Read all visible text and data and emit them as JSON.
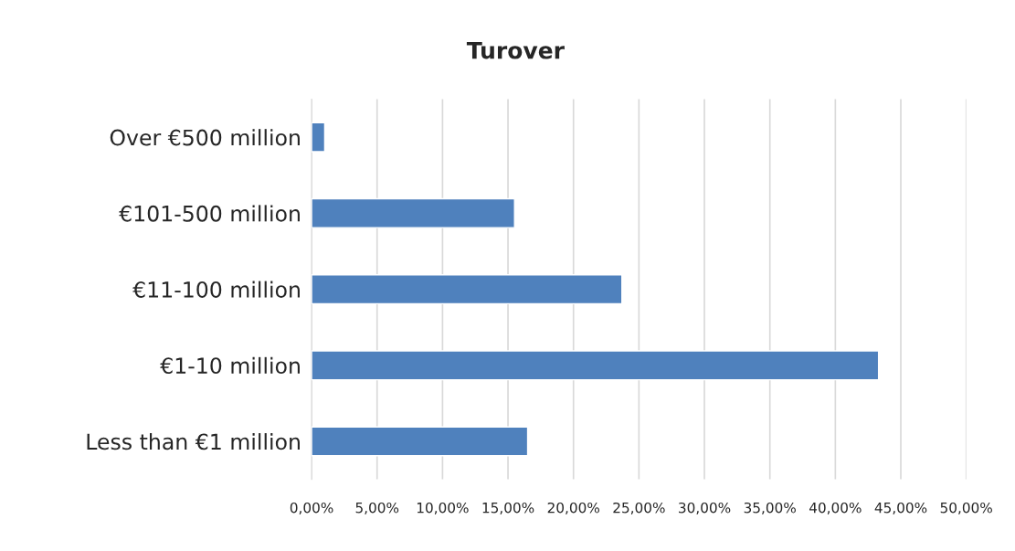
{
  "chart_data": {
    "type": "bar",
    "title": "Turover",
    "orientation": "horizontal",
    "categories": [
      "Over €500 million",
      "€101-500 million",
      "€11-100 million",
      "€1-10 million",
      "Less than €1 million"
    ],
    "values": [
      1.0,
      15.5,
      23.7,
      43.3,
      16.5
    ],
    "color": "#4f81bd",
    "xlim": [
      0,
      50
    ],
    "xticks": [
      {
        "value": 0,
        "label": "0,00%"
      },
      {
        "value": 5,
        "label": "5,00%"
      },
      {
        "value": 10,
        "label": "10,00%"
      },
      {
        "value": 15,
        "label": "15,00%"
      },
      {
        "value": 20,
        "label": "20,00%"
      },
      {
        "value": 25,
        "label": "25,00%"
      },
      {
        "value": 30,
        "label": "30,00%"
      },
      {
        "value": 35,
        "label": "35,00%"
      },
      {
        "value": 40,
        "label": "40,00%"
      },
      {
        "value": 45,
        "label": "45,00%"
      },
      {
        "value": 50,
        "label": "50,00%"
      }
    ],
    "grid": "x",
    "legend": false
  }
}
